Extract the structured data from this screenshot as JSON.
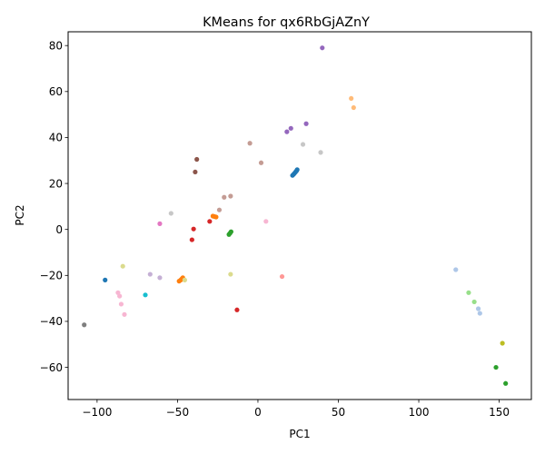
{
  "chart_data": {
    "type": "scatter",
    "title": "KMeans for qx6RbGjAZnY",
    "xlabel": "PC1",
    "ylabel": "PC2",
    "xlim": [
      -118,
      170
    ],
    "ylim": [
      -74,
      86
    ],
    "xticks": [
      -100,
      -50,
      0,
      50,
      100,
      150
    ],
    "yticks": [
      -60,
      -40,
      -20,
      0,
      20,
      40,
      60,
      80
    ],
    "tick_labels": {
      "x": [
        "−100",
        "−50",
        "0",
        "50",
        "100",
        "150"
      ],
      "y": [
        "−60",
        "−40",
        "−20",
        "0",
        "20",
        "40",
        "60",
        "80"
      ]
    },
    "grid": false,
    "legend": "none",
    "series": [
      {
        "color": "#1f77b4",
        "points": [
          [
            -95,
            -22
          ],
          [
            21.5,
            23.5
          ],
          [
            22.2,
            24.0
          ],
          [
            22.8,
            24.5
          ],
          [
            23.4,
            25.0
          ],
          [
            24.0,
            25.5
          ],
          [
            24.4,
            26.0
          ]
        ]
      },
      {
        "color": "#ff7f0e",
        "points": [
          [
            -28,
            5.8
          ],
          [
            -27,
            5.6
          ],
          [
            -26,
            5.4
          ],
          [
            -49,
            -22.5
          ],
          [
            -48,
            -22.0
          ],
          [
            -47.3,
            -21.5
          ],
          [
            -46.7,
            -21.0
          ]
        ]
      },
      {
        "color": "#2ca02c",
        "points": [
          [
            -18,
            -2.2
          ],
          [
            -17.3,
            -1.6
          ],
          [
            -16.7,
            -1.0
          ],
          [
            148,
            -60
          ],
          [
            154,
            -67
          ]
        ]
      },
      {
        "color": "#d62728",
        "points": [
          [
            -41,
            -4.5
          ],
          [
            -40,
            0.2
          ],
          [
            -30,
            3.5
          ],
          [
            -13,
            -35
          ]
        ]
      },
      {
        "color": "#9467bd",
        "points": [
          [
            40,
            79
          ],
          [
            30,
            46
          ],
          [
            20.5,
            44
          ],
          [
            18,
            42.5
          ]
        ]
      },
      {
        "color": "#8c564b",
        "points": [
          [
            -38,
            30.5
          ],
          [
            -39,
            25
          ]
        ]
      },
      {
        "color": "#e377c2",
        "points": [
          [
            -61,
            2.5
          ]
        ]
      },
      {
        "color": "#7f7f7f",
        "points": [
          [
            -108,
            -41.5
          ]
        ]
      },
      {
        "color": "#bcbd22",
        "points": [
          [
            152,
            -49.5
          ]
        ]
      },
      {
        "color": "#17becf",
        "points": [
          [
            -70,
            -28.5
          ]
        ]
      },
      {
        "color": "#aec7e8",
        "points": [
          [
            123,
            -17.5
          ],
          [
            137,
            -34.5
          ],
          [
            138,
            -36.5
          ]
        ]
      },
      {
        "color": "#ffbb78",
        "points": [
          [
            58,
            57
          ],
          [
            59.5,
            53
          ]
        ]
      },
      {
        "color": "#98df8a",
        "points": [
          [
            131,
            -27.5
          ],
          [
            134.5,
            -31.5
          ]
        ]
      },
      {
        "color": "#ff9896",
        "points": [
          [
            15,
            -20.5
          ]
        ]
      },
      {
        "color": "#c5b0d5",
        "points": [
          [
            -67,
            -19.5
          ],
          [
            -61,
            -21
          ]
        ]
      },
      {
        "color": "#c49c94",
        "points": [
          [
            -5,
            37.5
          ],
          [
            2,
            29
          ],
          [
            -21,
            14
          ],
          [
            -17,
            14.5
          ],
          [
            -24,
            8.5
          ]
        ]
      },
      {
        "color": "#f7b6d2",
        "points": [
          [
            -87,
            -27.5
          ],
          [
            -86,
            -29
          ],
          [
            -85,
            -32.5
          ],
          [
            -83,
            -37
          ],
          [
            5,
            3.5
          ]
        ]
      },
      {
        "color": "#c7c7c7",
        "points": [
          [
            28,
            37
          ],
          [
            39,
            33.5
          ],
          [
            -54,
            7
          ]
        ]
      },
      {
        "color": "#dbdb8d",
        "points": [
          [
            -84,
            -16
          ],
          [
            -17,
            -19.5
          ],
          [
            -45.5,
            -22
          ]
        ]
      }
    ]
  }
}
